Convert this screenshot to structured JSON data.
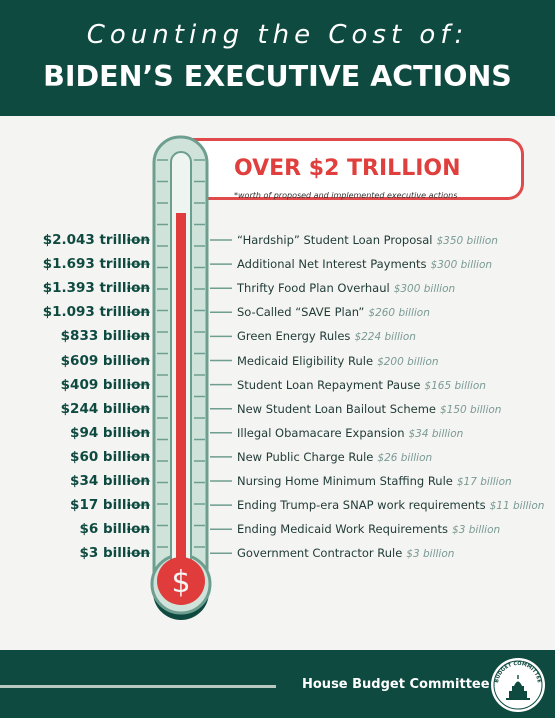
{
  "header": {
    "subtitle": "Counting the Cost of:",
    "title": "BIDEN’S EXECUTIVE ACTIONS"
  },
  "callout": {
    "title": "OVER $2 TRILLION",
    "note": "*worth of proposed and implemented executive actions"
  },
  "thermometer": {
    "symbol": "$",
    "colors": {
      "outline": "#6e9e90",
      "tube": "#cfe3da",
      "mercury": "#e03c3c",
      "bulb_shadow": "#0f4a40"
    }
  },
  "items": [
    {
      "total": "$2.043 trillion",
      "label": "“Hardship” Student Loan Proposal",
      "amount": "$350 billion"
    },
    {
      "total": "$1.693 trillion",
      "label": "Additional Net Interest Payments",
      "amount": "$300 billion"
    },
    {
      "total": "$1.393 trillion",
      "label": "Thrifty Food Plan Overhaul",
      "amount": "$300 billion"
    },
    {
      "total": "$1.093 trillion",
      "label": "So-Called “SAVE Plan”",
      "amount": "$260 billion"
    },
    {
      "total": "$833 billion",
      "label": "Green Energy Rules",
      "amount": "$224 billion"
    },
    {
      "total": "$609 billion",
      "label": "Medicaid Eligibility Rule",
      "amount": "$200 billion"
    },
    {
      "total": "$409 billion",
      "label": "Student Loan Repayment Pause",
      "amount": "$165 billion"
    },
    {
      "total": "$244 billion",
      "label": "New Student Loan Bailout Scheme",
      "amount": "$150 billion"
    },
    {
      "total": "$94 billion",
      "label": "Illegal Obamacare Expansion",
      "amount": "$34 billion"
    },
    {
      "total": "$60 billion",
      "label": "New Public Charge Rule",
      "amount": "$26 billion"
    },
    {
      "total": "$34 billion",
      "label": "Nursing Home Minimum Staffing Rule",
      "amount": "$17 billion"
    },
    {
      "total": "$17 billion",
      "label": "Ending Trump-era SNAP work requirements",
      "amount": "$11 billion"
    },
    {
      "total": "$6 billion",
      "label": "Ending Medicaid Work Requirements",
      "amount": "$3 billion"
    },
    {
      "total": "$3 billion",
      "label": "Government Contractor Rule",
      "amount": "$3 billion"
    }
  ],
  "footer": {
    "org": "House Budget Committee",
    "seal_text": "BUDGET COMMITTEE"
  }
}
